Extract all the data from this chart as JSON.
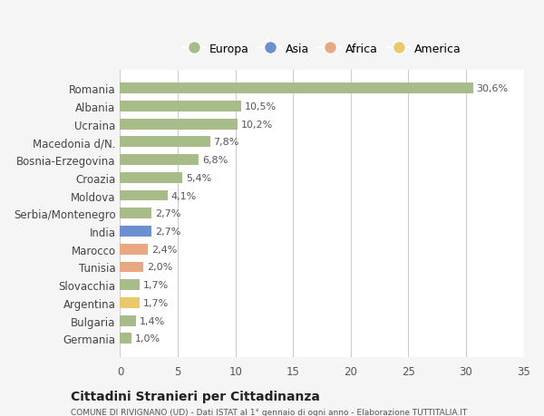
{
  "countries": [
    "Romania",
    "Albania",
    "Ucraina",
    "Macedonia d/N.",
    "Bosnia-Erzegovina",
    "Croazia",
    "Moldova",
    "Serbia/Montenegro",
    "India",
    "Marocco",
    "Tunisia",
    "Slovacchia",
    "Argentina",
    "Bulgaria",
    "Germania"
  ],
  "values": [
    30.6,
    10.5,
    10.2,
    7.8,
    6.8,
    5.4,
    4.1,
    2.7,
    2.7,
    2.4,
    2.0,
    1.7,
    1.7,
    1.4,
    1.0
  ],
  "labels": [
    "30,6%",
    "10,5%",
    "10,2%",
    "7,8%",
    "6,8%",
    "5,4%",
    "4,1%",
    "2,7%",
    "2,7%",
    "2,4%",
    "2,0%",
    "1,7%",
    "1,7%",
    "1,4%",
    "1,0%"
  ],
  "colors": [
    "#a8bc8a",
    "#a8bc8a",
    "#a8bc8a",
    "#a8bc8a",
    "#a8bc8a",
    "#a8bc8a",
    "#a8bc8a",
    "#a8bc8a",
    "#6b8fcf",
    "#e8a882",
    "#e8a882",
    "#a8bc8a",
    "#e8c96b",
    "#a8bc8a",
    "#a8bc8a"
  ],
  "legend": [
    {
      "label": "Europa",
      "color": "#a8bc8a"
    },
    {
      "label": "Asia",
      "color": "#6b8fcf"
    },
    {
      "label": "Africa",
      "color": "#e8a882"
    },
    {
      "label": "America",
      "color": "#e8c96b"
    }
  ],
  "xlim": [
    0,
    35
  ],
  "xticks": [
    0,
    5,
    10,
    15,
    20,
    25,
    30,
    35
  ],
  "title1": "Cittadini Stranieri per Cittadinanza",
  "title2": "COMUNE DI RIVIGNANO (UD) - Dati ISTAT al 1° gennaio di ogni anno - Elaborazione TUTTITALIA.IT",
  "background_color": "#f5f5f5",
  "plot_background": "#ffffff",
  "grid_color": "#cccccc"
}
